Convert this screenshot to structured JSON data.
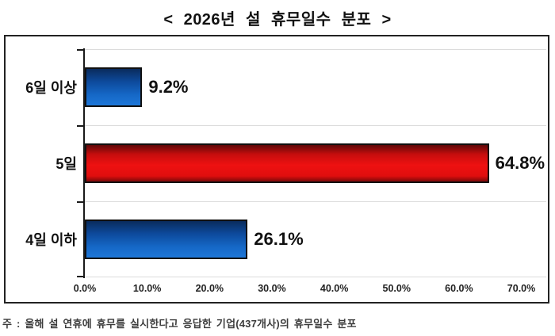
{
  "page": {
    "footnote": "주 : 올해 설 연휴에 휴무를 실시한다고 응답한 기업(437개사)의 휴무일수 분포"
  },
  "chart_data": {
    "type": "bar",
    "orientation": "horizontal",
    "title": "< 2026년 설 휴무일수 분포 >",
    "categories": [
      "6일 이상",
      "5일",
      "4일 이하"
    ],
    "values": [
      9.2,
      64.8,
      26.1
    ],
    "value_labels": [
      "9.2%",
      "64.8%",
      "26.1%"
    ],
    "bar_colors": [
      "blue",
      "red",
      "blue"
    ],
    "xlabel": "",
    "ylabel": "",
    "xlim": [
      0,
      70
    ],
    "x_tick_labels": [
      "0.0%",
      "10.0%",
      "20.0%",
      "30.0%",
      "40.0%",
      "50.0%",
      "60.0%",
      "70.0%"
    ],
    "grid": true,
    "legend": false,
    "footnote": "주 : 올해 설 연휴에 휴무를 실시한다고 응답한 기업(437개사)의 휴무일수 분포"
  },
  "colors": {
    "blue_bar": "#1266c4",
    "red_bar": "#e60f0f",
    "bar_border": "#101010",
    "axis": "#1a1a1a",
    "gridline": "#dcdcdc",
    "chart_border": "#222222",
    "title_text": "#111111",
    "footnote_text": "#3c3c3c"
  }
}
